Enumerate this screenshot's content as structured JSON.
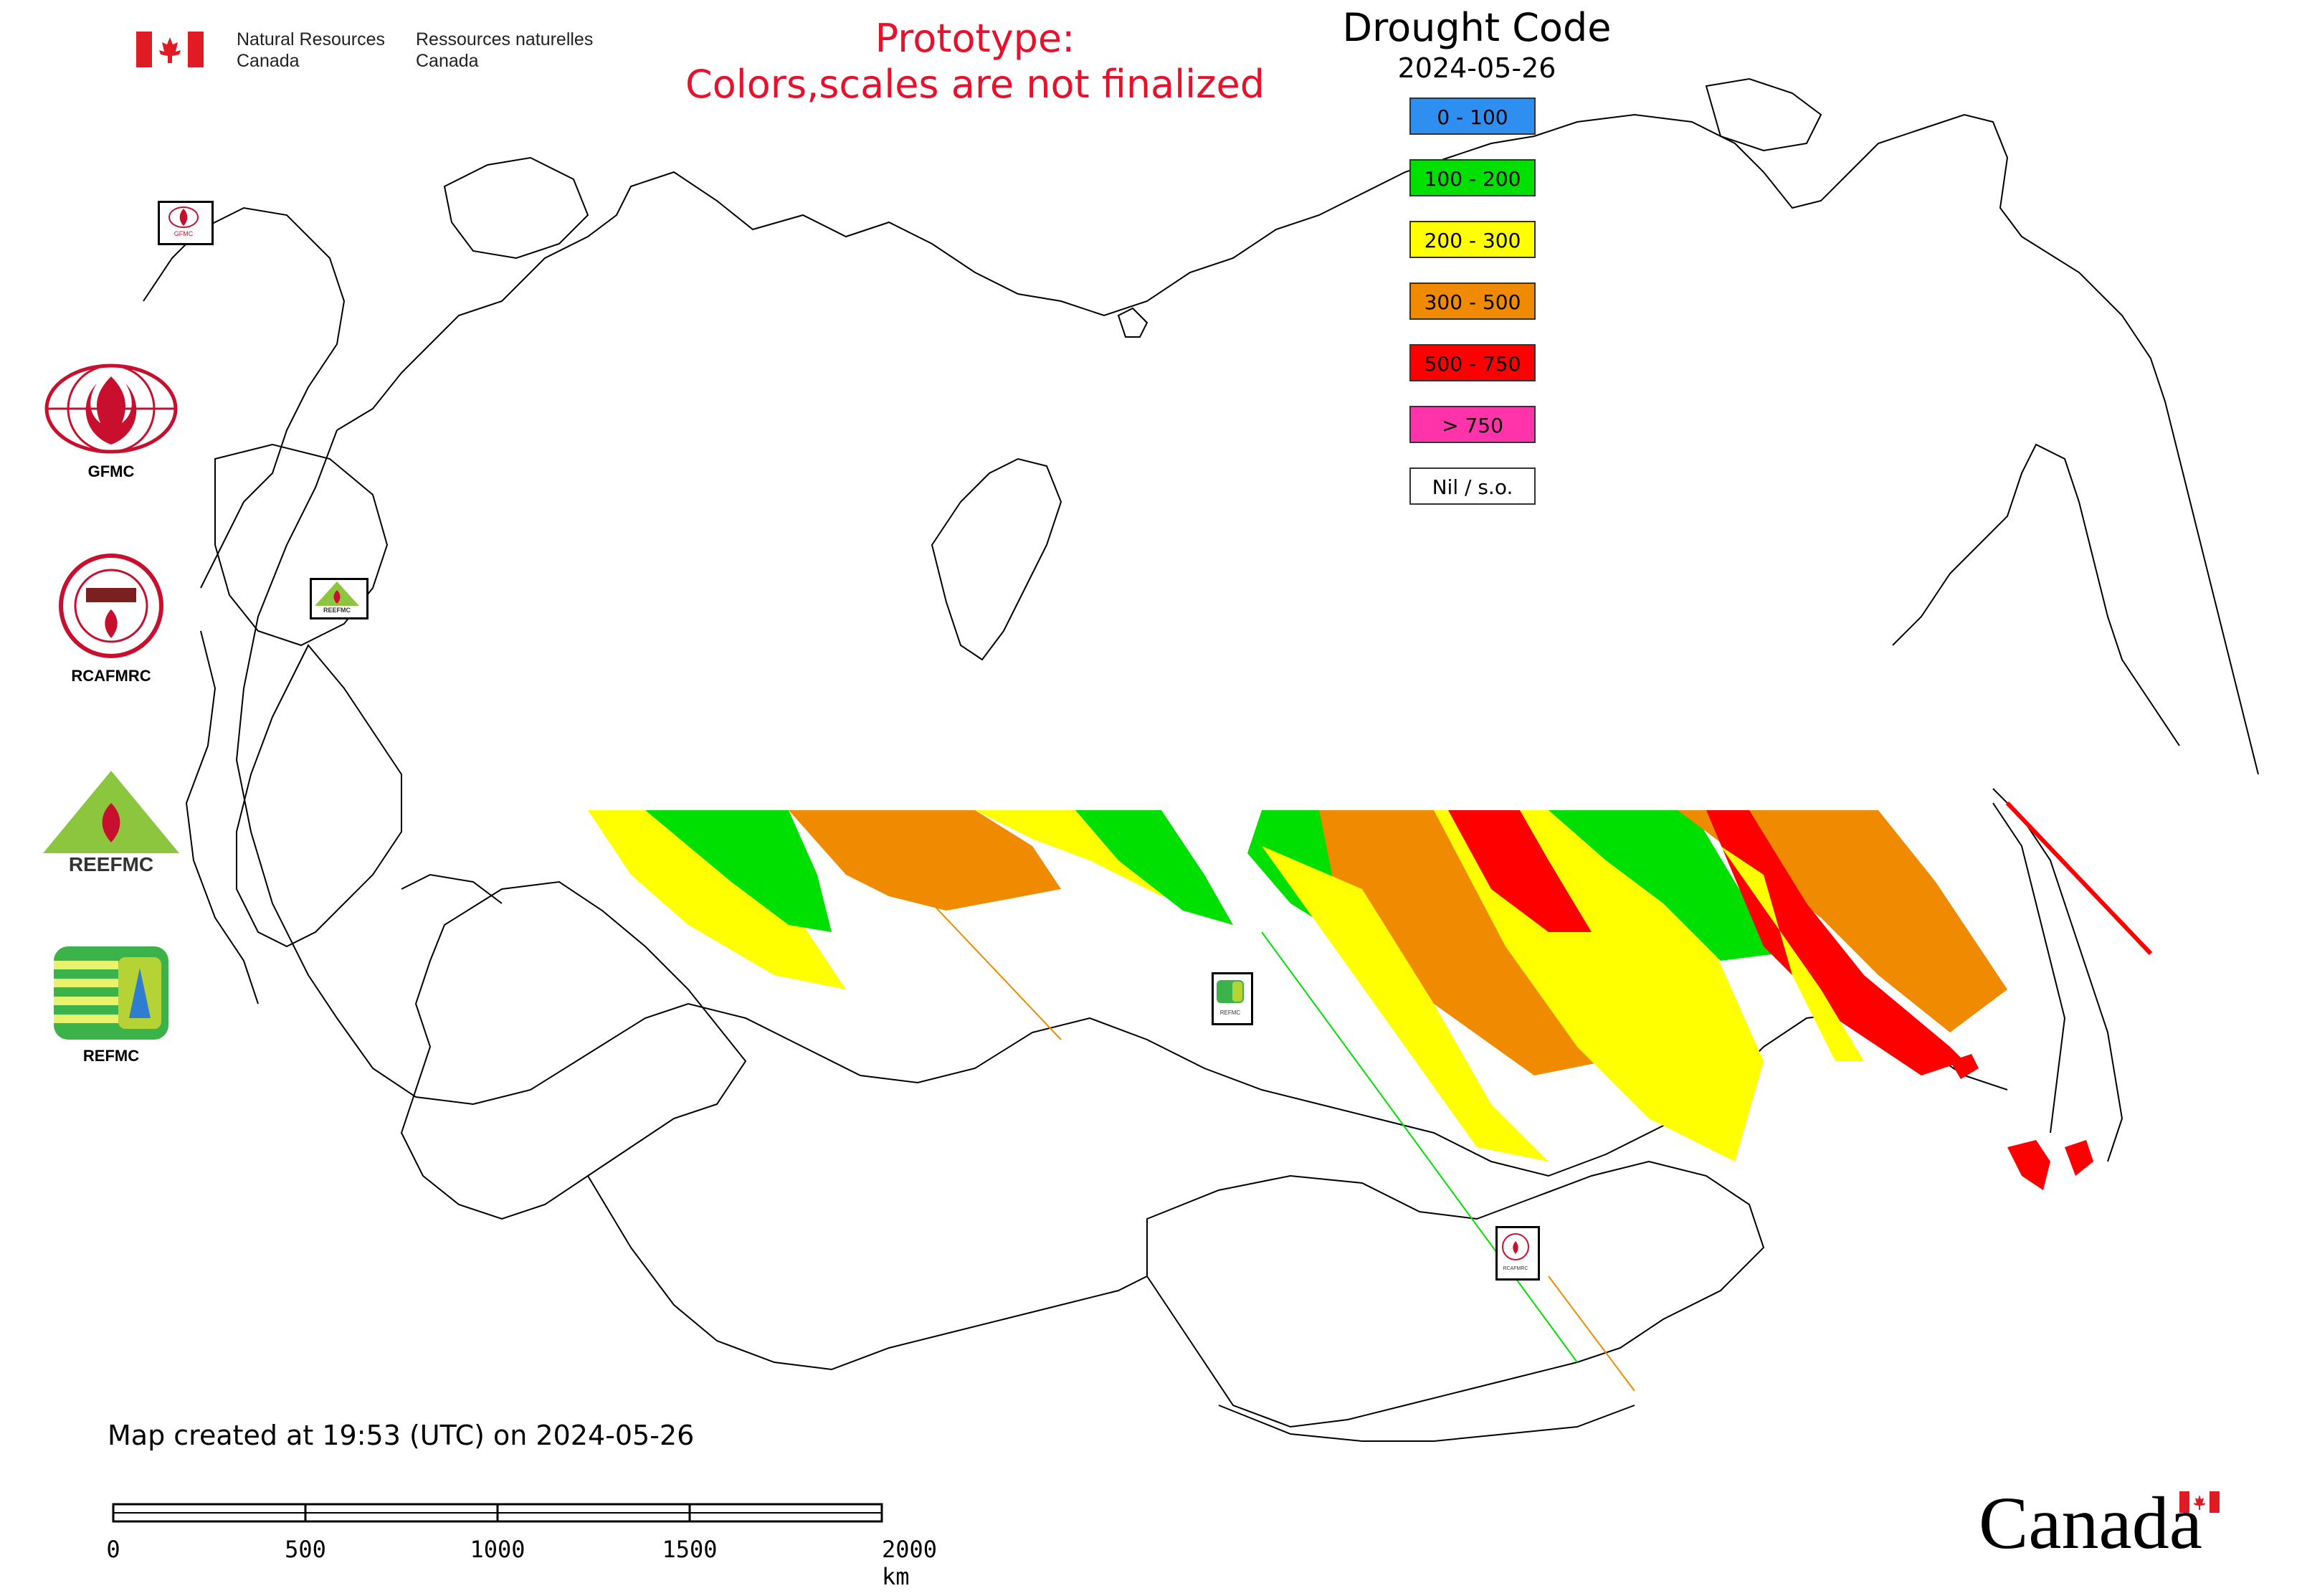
{
  "header": {
    "agency_en_line1": "Natural Resources",
    "agency_en_line2": "Canada",
    "agency_fr_line1": "Ressources naturelles",
    "agency_fr_line2": "Canada"
  },
  "notice": {
    "line1": "Prototype:",
    "line2": "Colors,scales are not finalized",
    "color": "#e8102a"
  },
  "map_title": {
    "title": "Drought Code",
    "date": "2024-05-26"
  },
  "legend": [
    {
      "label": "0 - 100",
      "color": "#2f8ff0"
    },
    {
      "label": "100 - 200",
      "color": "#00e000"
    },
    {
      "label": "200 - 300",
      "color": "#ffff00"
    },
    {
      "label": "300 - 500",
      "color": "#f08a00"
    },
    {
      "label": "500 - 750",
      "color": "#ff0000"
    },
    {
      "label": "> 750",
      "color": "#ff33aa"
    },
    {
      "label": "Nil / s.o.",
      "color": "#ffffff"
    }
  ],
  "side_logos": [
    {
      "label": "GFMC",
      "icon": "gfmc-logo"
    },
    {
      "label": "RCAFMRC",
      "icon": "rcafmrc-logo"
    },
    {
      "label": "",
      "icon": "reefmc-logo",
      "wordmark": "REEFMC"
    },
    {
      "label": "REFMC",
      "icon": "refmc-logo"
    }
  ],
  "map_markers": [
    {
      "label": "GFMC",
      "icon": "gfmc-marker"
    },
    {
      "label": "REEFMC",
      "icon": "reefmc-marker"
    },
    {
      "label": "REFMC",
      "icon": "refmc-marker"
    },
    {
      "label": "RCAFMRC",
      "icon": "rcafmrc-marker"
    }
  ],
  "footer": {
    "created": "Map created at 19:53 (UTC) on 2024-05-26"
  },
  "scale": {
    "ticks": [
      "0",
      "500",
      "1000",
      "1500",
      "2000 km"
    ]
  },
  "wordmark": "Canada"
}
